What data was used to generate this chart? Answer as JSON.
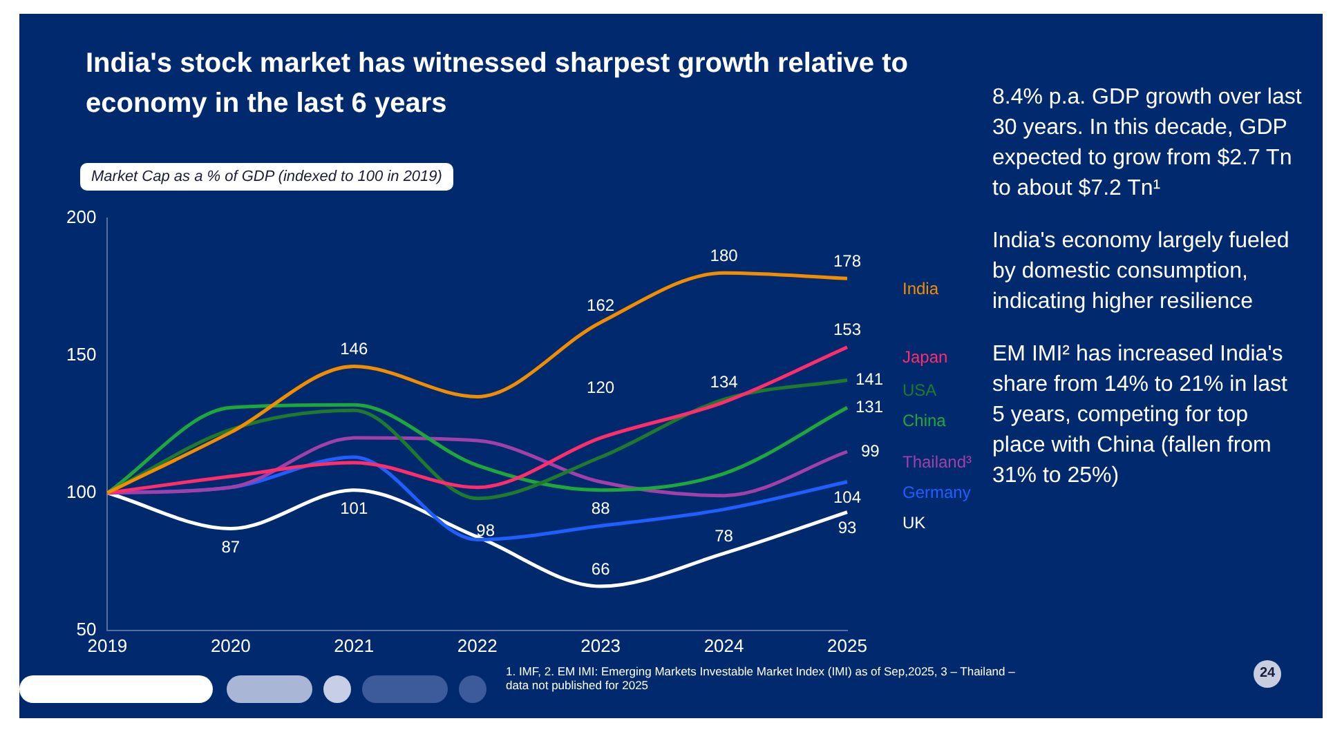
{
  "chart_data": {
    "type": "line",
    "title": "India's stock market has witnessed sharpest growth relative to economy in the last 6 years",
    "subtitle": "Market Cap as a % of GDP (indexed to 100 in 2019)",
    "categories": [
      "2019",
      "2020",
      "2021",
      "2022",
      "2023",
      "2024",
      "2025"
    ],
    "series": [
      {
        "name": "India",
        "color": "#f28c00",
        "values": [
          100,
          122,
          146,
          135,
          162,
          180,
          178
        ],
        "value_labels": [
          null,
          null,
          "146",
          null,
          "162",
          "180",
          "178"
        ]
      },
      {
        "name": "Japan",
        "color": "#ff2d6a",
        "values": [
          100,
          106,
          111,
          102,
          120,
          133,
          153
        ],
        "value_labels": [
          null,
          null,
          null,
          null,
          "120",
          null,
          "153"
        ]
      },
      {
        "name": "USA",
        "color": "#1f7a2e",
        "values": [
          100,
          123,
          130,
          98,
          113,
          134,
          141
        ],
        "value_labels": [
          null,
          null,
          null,
          "98",
          null,
          "134",
          "141"
        ]
      },
      {
        "name": "China",
        "color": "#1fa83a",
        "values": [
          100,
          131,
          132,
          110,
          101,
          107,
          131
        ],
        "value_labels": [
          null,
          null,
          null,
          null,
          null,
          null,
          "131"
        ]
      },
      {
        "name": "Thailand³",
        "color": "#a040a8",
        "values": [
          100,
          102,
          120,
          119,
          104,
          99,
          115
        ]
      },
      {
        "name": "Germany",
        "color": "#1f5fff",
        "values": [
          100,
          102,
          113,
          83,
          88,
          94,
          104
        ],
        "value_labels": [
          null,
          null,
          null,
          null,
          "88",
          null,
          "104"
        ]
      },
      {
        "name": "UK",
        "color": "#ffffff",
        "values": [
          100,
          87,
          101,
          84,
          66,
          78,
          93
        ],
        "value_labels": [
          null,
          "87",
          "101",
          null,
          "66",
          "78",
          "93"
        ]
      }
    ],
    "ylim": [
      50,
      200
    ],
    "yticks": [
      50,
      100,
      150,
      200
    ],
    "grid": false,
    "legend": false,
    "annotations": [
      {
        "text": "99",
        "x": "2025",
        "y": 115
      },
      "8.4% p.a. GDP growth over last 30 years. In this decade, GDP expected to grow from $2.7 Tn to about $7.2 Tn¹",
      "India's economy largely fueled by domestic consumption, indicating higher resilience",
      "EM IMI² has increased India's share from 14% to 21% in last 5 years, competing for top place with China (fallen from 31% to 25%)",
      "1. IMF, 2. EM IMI: Emerging Markets Investable Market Index (IMI) as of Sep,2025, 3 – Thailand – data not published for 2025",
      "24"
    ]
  }
}
